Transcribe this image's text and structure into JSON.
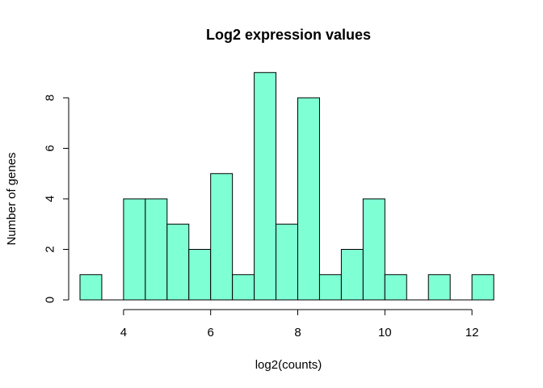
{
  "chart_data": {
    "type": "bar",
    "title": "Log2 expression values",
    "xlabel": "log2(counts)",
    "ylabel": "Number of genes",
    "bin_edges": [
      3,
      3.5,
      4,
      4.5,
      5,
      5.5,
      6,
      6.5,
      7,
      7.5,
      8,
      8.5,
      9,
      9.5,
      10,
      10.5,
      11,
      11.5,
      12,
      12.5
    ],
    "values": [
      1,
      0,
      4,
      4,
      3,
      2,
      5,
      1,
      9,
      3,
      8,
      1,
      2,
      4,
      1,
      0,
      1,
      0,
      1
    ],
    "xlim": [
      3,
      12.5
    ],
    "ylim": [
      0,
      9
    ],
    "x_ticks": [
      4,
      6,
      8,
      10,
      12
    ],
    "y_ticks": [
      0,
      2,
      4,
      6,
      8
    ],
    "bar_color": "#7FFFD4",
    "grid": false
  }
}
